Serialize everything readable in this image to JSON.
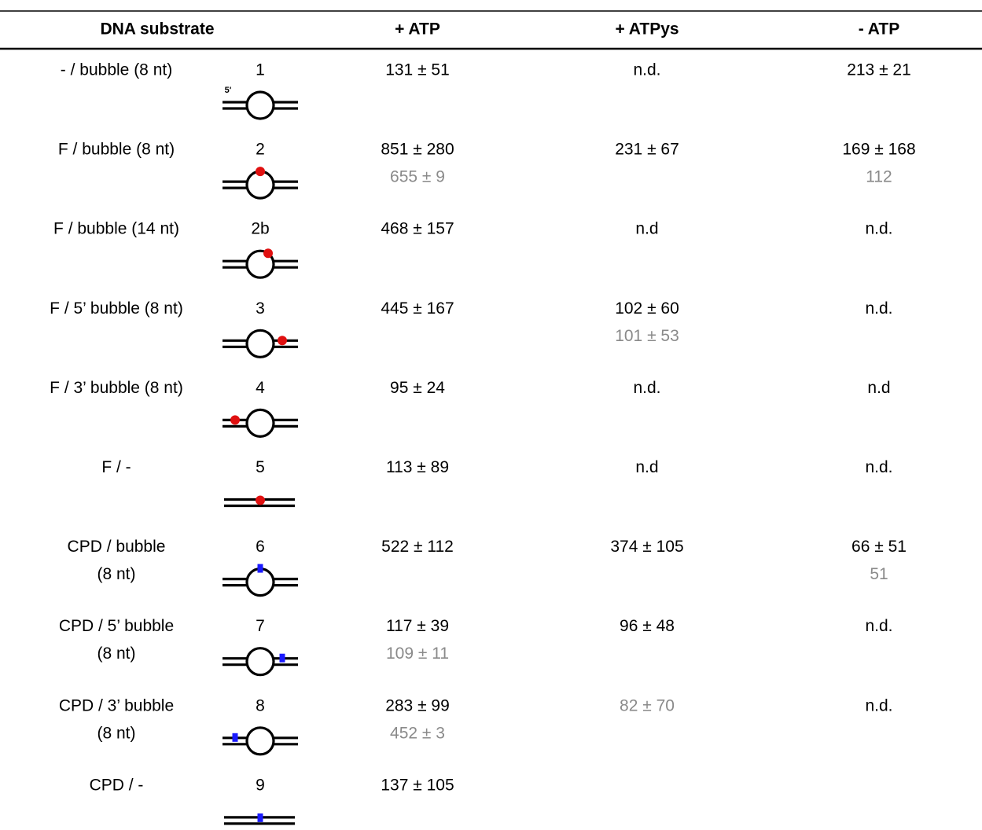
{
  "table": {
    "header": [
      "DNA substrate",
      "+ ATP",
      "+ ATPys",
      "- ATP"
    ],
    "rows": [
      {
        "substrate": [
          "- / bubble (8 nt)"
        ],
        "number": "1",
        "five_prime": "5'",
        "atp": {
          "main": "131 ± 51"
        },
        "atpys": {
          "main": "n.d."
        },
        "minus_atp": {
          "main": "213 ± 21"
        }
      },
      {
        "substrate": [
          "F / bubble (8 nt)"
        ],
        "number": "2",
        "atp": {
          "main": "851 ± 280",
          "secondary": "655 ± 9"
        },
        "atpys": {
          "main": "231 ± 67"
        },
        "minus_atp": {
          "main": "169 ± 168",
          "secondary": "112"
        }
      },
      {
        "substrate": [
          "F / bubble (14 nt)"
        ],
        "number": "2b",
        "atp": {
          "main": "468 ± 157"
        },
        "atpys": {
          "main": "n.d"
        },
        "minus_atp": {
          "main": "n.d."
        }
      },
      {
        "substrate": [
          "F / 5’ bubble (8 nt)"
        ],
        "number": "3",
        "atp": {
          "main": "445 ± 167"
        },
        "atpys": {
          "main": "102 ± 60",
          "secondary": "101 ± 53"
        },
        "minus_atp": {
          "main": "n.d."
        }
      },
      {
        "substrate": [
          "F / 3’ bubble (8 nt)"
        ],
        "number": "4",
        "atp": {
          "main": "95 ± 24"
        },
        "atpys": {
          "main": "n.d."
        },
        "minus_atp": {
          "main": "n.d"
        }
      },
      {
        "substrate": [
          "F / -"
        ],
        "number": "5",
        "atp": {
          "main": "113 ± 89"
        },
        "atpys": {
          "main": "n.d"
        },
        "minus_atp": {
          "main": "n.d."
        }
      },
      {
        "substrate": [
          "CPD / bubble",
          "(8 nt)"
        ],
        "number": "6",
        "atp": {
          "main": "522 ± 112"
        },
        "atpys": {
          "main": "374 ± 105"
        },
        "minus_atp": {
          "main": "66 ± 51",
          "secondary": "51"
        }
      },
      {
        "substrate": [
          "CPD / 5’ bubble",
          "(8 nt)"
        ],
        "number": "7",
        "atp": {
          "main": "117 ± 39",
          "secondary": "109 ± 11"
        },
        "atpys": {
          "main": "96 ± 48"
        },
        "minus_atp": {
          "main": "n.d."
        }
      },
      {
        "substrate": [
          "CPD / 3’ bubble",
          "(8 nt)"
        ],
        "number": "8",
        "atp": {
          "main": "283 ± 99",
          "secondary": "452 ± 3"
        },
        "atpys": {
          "secondary": "82 ± 70"
        },
        "minus_atp": {
          "main": "n.d."
        }
      },
      {
        "substrate": [
          "CPD / -"
        ],
        "number": "9",
        "atp": {
          "main": "137 ± 105"
        }
      }
    ]
  }
}
